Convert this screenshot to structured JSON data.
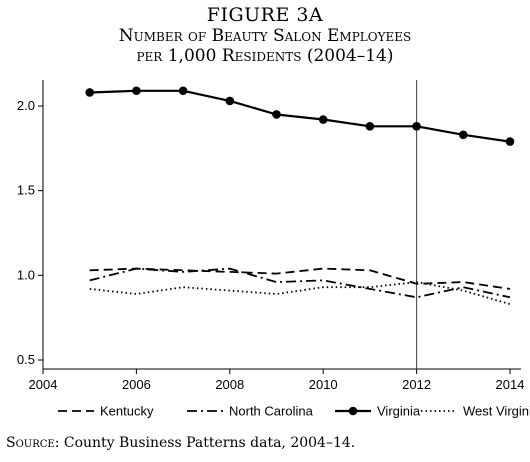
{
  "title": {
    "line1": "FIGURE 3A",
    "line2": "Number of Beauty Salon Employees",
    "line3": "per 1,000 Residents (2004–14)"
  },
  "source": {
    "label": "Source:",
    "text": "County Business Patterns data, 2004–14."
  },
  "chart_data": {
    "type": "line",
    "title": "Number of Beauty Salon Employees per 1,000 Residents (2004–14)",
    "xlabel": "",
    "ylabel": "",
    "x": [
      2005,
      2006,
      2007,
      2008,
      2009,
      2010,
      2011,
      2012,
      2013,
      2014
    ],
    "xlim": [
      2004,
      2014
    ],
    "ylim": [
      0.5,
      2.1
    ],
    "xticks": [
      2004,
      2006,
      2008,
      2010,
      2012,
      2014
    ],
    "yticks": [
      0.5,
      1.0,
      1.5,
      2.0
    ],
    "xtick_labels": [
      "2004",
      "2006",
      "2008",
      "2010",
      "2012",
      "2014"
    ],
    "ytick_labels": [
      "0.5",
      "1.0",
      "1.5",
      "2.0"
    ],
    "vertical_reference_line_x": 2012,
    "grid": false,
    "legend_position": "bottom",
    "series": [
      {
        "name": "Kentucky",
        "style": "dashed",
        "color": "#000000",
        "values": [
          1.03,
          1.04,
          1.03,
          1.02,
          1.01,
          1.04,
          1.03,
          0.95,
          0.96,
          0.92
        ]
      },
      {
        "name": "North Carolina",
        "style": "dash-dot",
        "color": "#000000",
        "values": [
          0.97,
          1.04,
          1.02,
          1.04,
          0.96,
          0.97,
          0.92,
          0.87,
          0.93,
          0.87
        ]
      },
      {
        "name": "Virginia",
        "style": "solid-markers",
        "color": "#000000",
        "values": [
          2.08,
          2.09,
          2.09,
          2.03,
          1.95,
          1.92,
          1.88,
          1.88,
          1.83,
          1.79
        ]
      },
      {
        "name": "West Virginia",
        "style": "dotted",
        "color": "#000000",
        "values": [
          0.92,
          0.89,
          0.93,
          0.91,
          0.89,
          0.93,
          0.93,
          0.96,
          0.91,
          0.83
        ]
      }
    ]
  }
}
